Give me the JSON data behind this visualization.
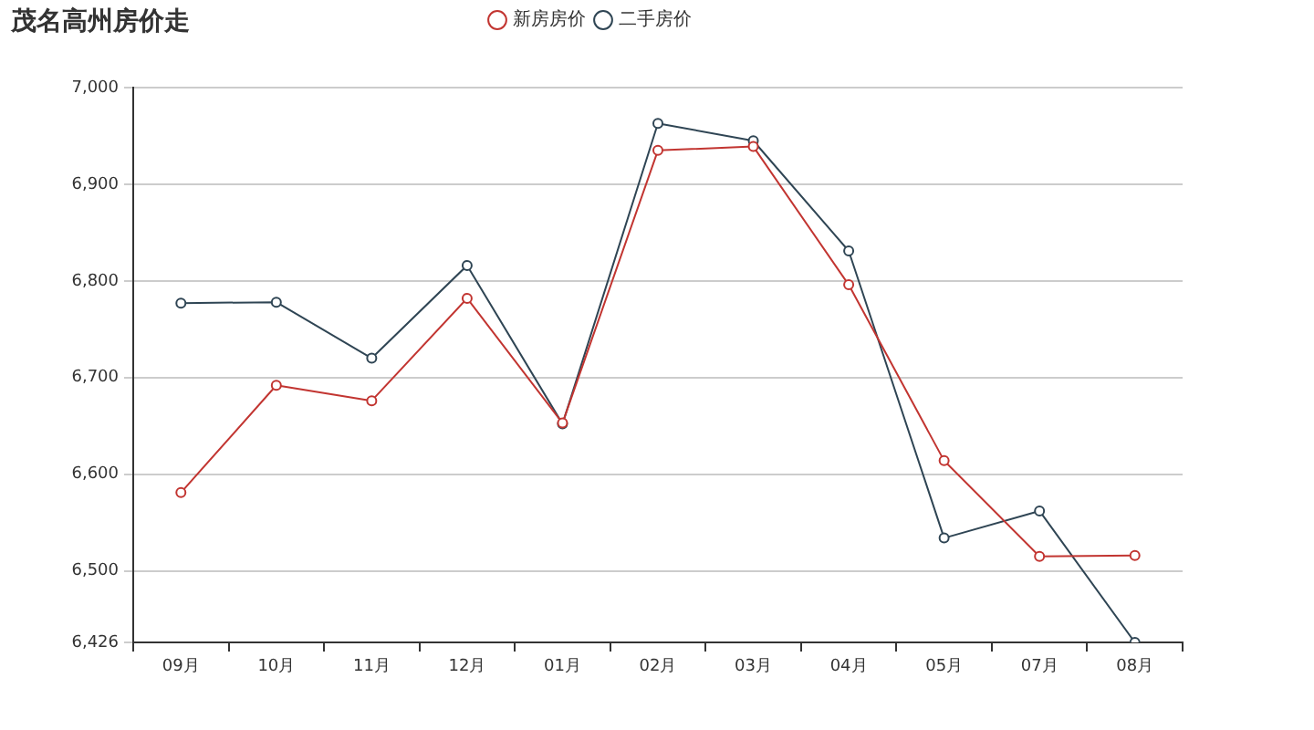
{
  "chart_data": {
    "type": "line",
    "title": "茂名高州房价走",
    "categories": [
      "09月",
      "10月",
      "11月",
      "12月",
      "01月",
      "02月",
      "03月",
      "04月",
      "05月",
      "07月",
      "08月"
    ],
    "series": [
      {
        "name": "新房房价",
        "color": "#c23531",
        "values": [
          6581,
          6692,
          6676,
          6782,
          6653,
          6935,
          6939,
          6796,
          6614,
          6515,
          6516
        ]
      },
      {
        "name": "二手房价",
        "color": "#2f4554",
        "values": [
          6777,
          6778,
          6720,
          6816,
          6652,
          6963,
          6945,
          6831,
          6534,
          6562,
          6426
        ]
      }
    ],
    "ylim": [
      6426,
      7000
    ],
    "yticks": [
      {
        "value": 6426,
        "label": "6,426"
      },
      {
        "value": 6500,
        "label": "6,500"
      },
      {
        "value": 6600,
        "label": "6,600"
      },
      {
        "value": 6700,
        "label": "6,700"
      },
      {
        "value": 6800,
        "label": "6,800"
      },
      {
        "value": 6900,
        "label": "6,900"
      },
      {
        "value": 7000,
        "label": "7,000"
      }
    ],
    "grid": "y",
    "legend": "top",
    "marker": "circle",
    "line_style": "solid"
  }
}
